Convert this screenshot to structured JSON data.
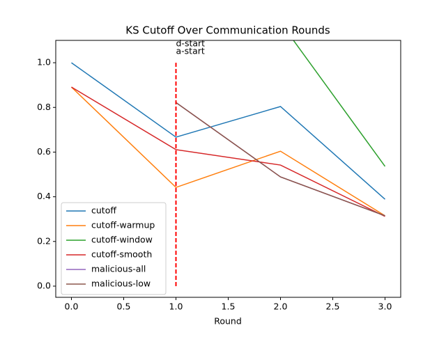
{
  "chart_data": {
    "type": "line",
    "title": "KS Cutoff Over Communication Rounds",
    "x_label": "Round",
    "x": [
      0,
      1,
      2,
      3
    ],
    "series": [
      {
        "name": "cutoff",
        "color": "#1f77b4",
        "values": [
          1.0,
          0.667,
          0.804,
          0.389
        ]
      },
      {
        "name": "cutoff-warmup",
        "color": "#ff7f0e",
        "values": [
          0.891,
          0.442,
          0.604,
          0.315
        ]
      },
      {
        "name": "cutoff-window",
        "color": "#2ca02c",
        "values": [
          null,
          null,
          1.18,
          0.536
        ]
      },
      {
        "name": "cutoff-smooth",
        "color": "#d62728",
        "values": [
          0.891,
          0.611,
          0.542,
          0.312
        ]
      },
      {
        "name": "malicious-all",
        "color": "#9467bd",
        "values": [
          null,
          0.822,
          0.489,
          0.315
        ]
      },
      {
        "name": "malicious-low",
        "color": "#8c564b",
        "values": [
          null,
          0.822,
          0.489,
          0.315
        ]
      }
    ],
    "xlim": [
      -0.15,
      3.15
    ],
    "ylim": [
      -0.05,
      1.1
    ],
    "xticks": [
      {
        "value": 0,
        "label": "0.0"
      },
      0.5,
      {
        "value": 1,
        "label": "1.0"
      },
      1.5,
      {
        "value": 2,
        "label": "2.0"
      },
      2.5,
      {
        "value": 3,
        "label": "3.0"
      }
    ],
    "yticks": [
      {
        "value": 0,
        "label": "0.0"
      },
      0.2,
      0.4,
      0.6,
      0.8,
      {
        "value": 1,
        "label": "1.0"
      }
    ],
    "vlines": [
      {
        "x": 1,
        "ymin": 0,
        "ymax": 1,
        "color": "#ff0000"
      }
    ],
    "annotations": [
      {
        "text": "d-start",
        "x": 1,
        "y": 1.085
      },
      {
        "text": "a-start",
        "x": 1,
        "y": 1.05
      }
    ],
    "legend": "lower left"
  }
}
